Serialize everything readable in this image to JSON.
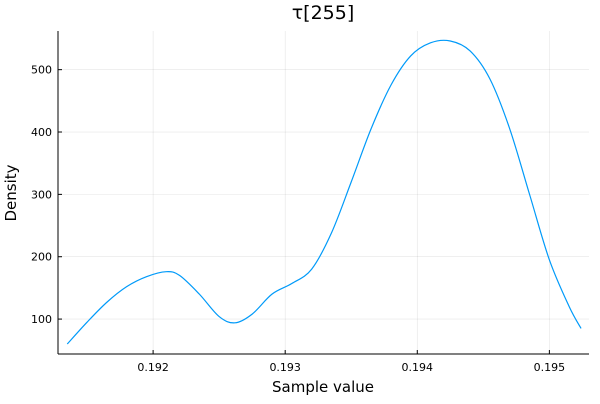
{
  "chart_data": {
    "type": "line",
    "title": "τ[255]",
    "xlabel": "Sample value",
    "ylabel": "Density",
    "xlim": [
      0.19128,
      0.1953
    ],
    "ylim": [
      44,
      562
    ],
    "xticks": [
      0.192,
      0.193,
      0.194,
      0.195
    ],
    "xtick_labels": [
      "0.192",
      "0.193",
      "0.194",
      "0.195"
    ],
    "yticks": [
      100,
      200,
      300,
      400,
      500
    ],
    "ytick_labels": [
      "100",
      "200",
      "300",
      "400",
      "500"
    ],
    "grid": true,
    "legend": "none",
    "series": [
      {
        "color": "#009af9",
        "x": [
          0.19135,
          0.1915,
          0.19165,
          0.1918,
          0.19195,
          0.1921,
          0.1922,
          0.19235,
          0.1925,
          0.19262,
          0.19275,
          0.1929,
          0.19305,
          0.1932,
          0.19335,
          0.1935,
          0.19365,
          0.1938,
          0.19395,
          0.1941,
          0.19425,
          0.1944,
          0.19455,
          0.1947,
          0.19485,
          0.195,
          0.19515,
          0.19524
        ],
        "y": [
          60,
          95,
          127,
          152,
          168,
          176,
          170,
          140,
          104,
          94,
          108,
          140,
          157,
          180,
          238,
          320,
          405,
          475,
          522,
          543,
          546,
          530,
          485,
          405,
          300,
          195,
          120,
          85
        ]
      }
    ]
  }
}
